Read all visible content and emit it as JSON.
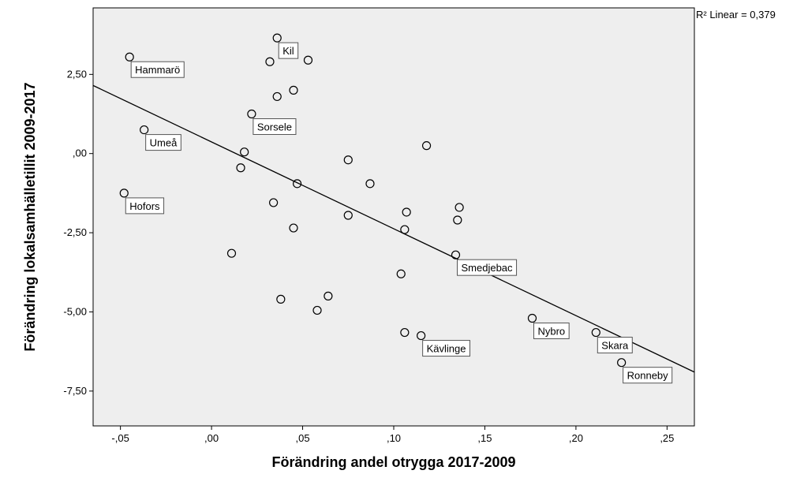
{
  "chart_data": {
    "type": "scatter",
    "xlabel": "Förändring andel otrygga 2017-2009",
    "ylabel": "Förändring lokalsamhälletillit 2009-2017",
    "xlim": [
      -0.065,
      0.265
    ],
    "ylim": [
      -8.6,
      4.6
    ],
    "x_ticks": [
      -0.05,
      0.0,
      0.05,
      0.1,
      0.15,
      0.2,
      0.25
    ],
    "x_tick_labels": [
      "-,05",
      ",00",
      ",05",
      ",10",
      ",15",
      ",20",
      ",25"
    ],
    "y_ticks": [
      2.5,
      0.0,
      -2.5,
      -5.0,
      -7.5
    ],
    "y_tick_labels": [
      "2,50",
      ",00",
      "-2,50",
      "-5,00",
      "-7,50"
    ],
    "grid": false,
    "r2_label": "R² Linear = 0,379",
    "fit_line": {
      "x": [
        -0.065,
        0.265
      ],
      "y": [
        2.15,
        -6.9
      ]
    },
    "points": [
      {
        "x": 0.036,
        "y": 3.65,
        "label": "Kil"
      },
      {
        "x": -0.045,
        "y": 3.05,
        "label": "Hammarö"
      },
      {
        "x": 0.032,
        "y": 2.9,
        "label": ""
      },
      {
        "x": 0.053,
        "y": 2.95,
        "label": ""
      },
      {
        "x": 0.045,
        "y": 2.0,
        "label": ""
      },
      {
        "x": 0.036,
        "y": 1.8,
        "label": ""
      },
      {
        "x": 0.022,
        "y": 1.25,
        "label": "Sorsele"
      },
      {
        "x": -0.037,
        "y": 0.75,
        "label": "Umeå"
      },
      {
        "x": 0.018,
        "y": 0.05,
        "label": ""
      },
      {
        "x": 0.016,
        "y": -0.45,
        "label": ""
      },
      {
        "x": 0.047,
        "y": -0.95,
        "label": ""
      },
      {
        "x": -0.048,
        "y": -1.25,
        "label": "Hofors"
      },
      {
        "x": 0.034,
        "y": -1.55,
        "label": ""
      },
      {
        "x": 0.045,
        "y": -2.35,
        "label": ""
      },
      {
        "x": 0.011,
        "y": -3.15,
        "label": ""
      },
      {
        "x": 0.038,
        "y": -4.6,
        "label": ""
      },
      {
        "x": 0.064,
        "y": -4.5,
        "label": ""
      },
      {
        "x": 0.058,
        "y": -4.95,
        "label": ""
      },
      {
        "x": 0.075,
        "y": -0.2,
        "label": ""
      },
      {
        "x": 0.087,
        "y": -0.95,
        "label": ""
      },
      {
        "x": 0.075,
        "y": -1.95,
        "label": ""
      },
      {
        "x": 0.118,
        "y": 0.25,
        "label": ""
      },
      {
        "x": 0.107,
        "y": -1.85,
        "label": ""
      },
      {
        "x": 0.106,
        "y": -2.4,
        "label": ""
      },
      {
        "x": 0.104,
        "y": -3.8,
        "label": ""
      },
      {
        "x": 0.106,
        "y": -5.65,
        "label": ""
      },
      {
        "x": 0.115,
        "y": -5.75,
        "label": "Kävlinge"
      },
      {
        "x": 0.136,
        "y": -1.7,
        "label": ""
      },
      {
        "x": 0.135,
        "y": -2.1,
        "label": ""
      },
      {
        "x": 0.134,
        "y": -3.2,
        "label": "Smedjebac"
      },
      {
        "x": 0.176,
        "y": -5.2,
        "label": "Nybro"
      },
      {
        "x": 0.211,
        "y": -5.65,
        "label": "Skara"
      },
      {
        "x": 0.225,
        "y": -6.6,
        "label": "Ronneby"
      }
    ]
  }
}
